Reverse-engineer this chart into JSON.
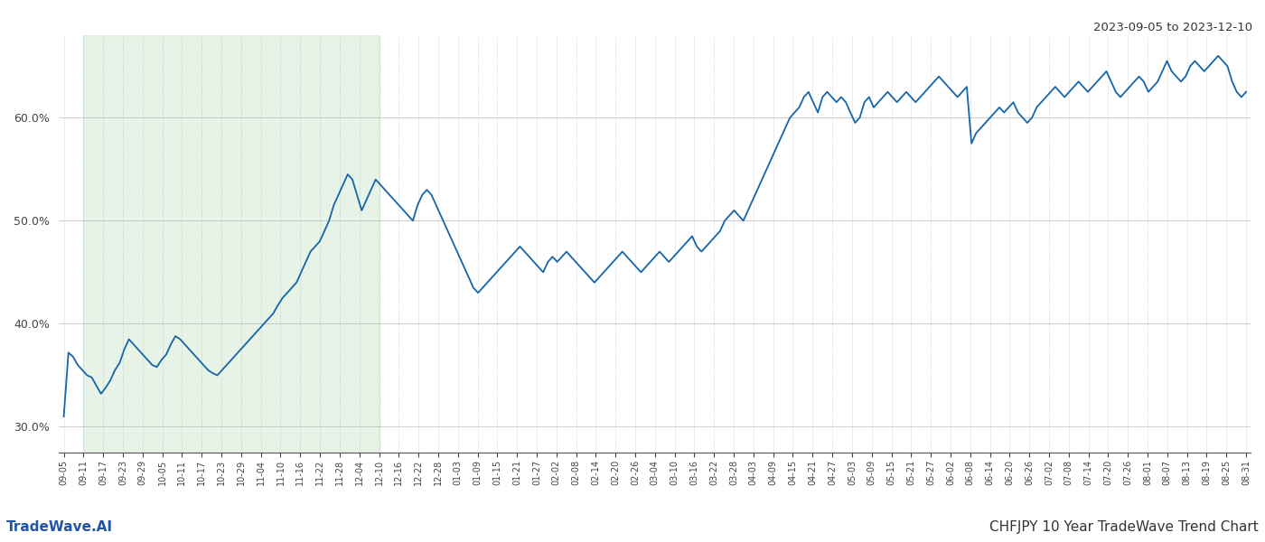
{
  "title_top_right": "2023-09-05 to 2023-12-10",
  "title_bottom_left": "TradeWave.AI",
  "title_bottom_right": "CHFJPY 10 Year TradeWave Trend Chart",
  "line_color": "#1565a8",
  "line_width": 1.3,
  "shade_color": "#c8e6c8",
  "shade_alpha": 0.45,
  "background_color": "#ffffff",
  "grid_color": "#bbbbbb",
  "ylim": [
    27.5,
    68.0
  ],
  "yticks": [
    30.0,
    40.0,
    50.0,
    60.0
  ],
  "x_labels": [
    "09-05",
    "09-11",
    "09-17",
    "09-23",
    "09-29",
    "10-05",
    "10-11",
    "10-17",
    "10-23",
    "10-29",
    "11-04",
    "11-10",
    "11-16",
    "11-22",
    "11-28",
    "12-04",
    "12-10",
    "12-16",
    "12-22",
    "12-28",
    "01-03",
    "01-09",
    "01-15",
    "01-21",
    "01-27",
    "02-02",
    "02-08",
    "02-14",
    "02-20",
    "02-26",
    "03-04",
    "03-10",
    "03-16",
    "03-22",
    "03-28",
    "04-03",
    "04-09",
    "04-15",
    "04-21",
    "04-27",
    "05-03",
    "05-09",
    "05-15",
    "05-21",
    "05-27",
    "06-02",
    "06-08",
    "06-14",
    "06-20",
    "06-26",
    "07-02",
    "07-08",
    "07-14",
    "07-20",
    "07-26",
    "08-01",
    "08-07",
    "08-13",
    "08-19",
    "08-25",
    "08-31"
  ],
  "shade_label_start": "09-11",
  "shade_label_end": "12-10",
  "values": [
    31.0,
    37.2,
    36.8,
    36.0,
    35.5,
    35.0,
    34.8,
    34.0,
    33.2,
    33.8,
    34.5,
    35.5,
    36.2,
    37.5,
    38.5,
    38.0,
    37.5,
    37.0,
    36.5,
    36.0,
    35.8,
    36.5,
    37.0,
    38.0,
    38.8,
    38.5,
    38.0,
    37.5,
    37.0,
    36.5,
    36.0,
    35.5,
    35.2,
    35.0,
    35.5,
    36.0,
    36.5,
    37.0,
    37.5,
    38.0,
    38.5,
    39.0,
    39.5,
    40.0,
    40.5,
    41.0,
    41.8,
    42.5,
    43.0,
    43.5,
    44.0,
    45.0,
    46.0,
    47.0,
    47.5,
    48.0,
    49.0,
    50.0,
    51.5,
    52.5,
    53.5,
    54.5,
    54.0,
    52.5,
    51.0,
    52.0,
    53.0,
    54.0,
    53.5,
    53.0,
    52.5,
    52.0,
    51.5,
    51.0,
    50.5,
    50.0,
    51.5,
    52.5,
    53.0,
    52.5,
    51.5,
    50.5,
    49.5,
    48.5,
    47.5,
    46.5,
    45.5,
    44.5,
    43.5,
    43.0,
    43.5,
    44.0,
    44.5,
    45.0,
    45.5,
    46.0,
    46.5,
    47.0,
    47.5,
    47.0,
    46.5,
    46.0,
    45.5,
    45.0,
    46.0,
    46.5,
    46.0,
    46.5,
    47.0,
    46.5,
    46.0,
    45.5,
    45.0,
    44.5,
    44.0,
    44.5,
    45.0,
    45.5,
    46.0,
    46.5,
    47.0,
    46.5,
    46.0,
    45.5,
    45.0,
    45.5,
    46.0,
    46.5,
    47.0,
    46.5,
    46.0,
    46.5,
    47.0,
    47.5,
    48.0,
    48.5,
    47.5,
    47.0,
    47.5,
    48.0,
    48.5,
    49.0,
    50.0,
    50.5,
    51.0,
    50.5,
    50.0,
    51.0,
    52.0,
    53.0,
    54.0,
    55.0,
    56.0,
    57.0,
    58.0,
    59.0,
    60.0,
    60.5,
    61.0,
    62.0,
    62.5,
    61.5,
    60.5,
    62.0,
    62.5,
    62.0,
    61.5,
    62.0,
    61.5,
    60.5,
    59.5,
    60.0,
    61.5,
    62.0,
    61.0,
    61.5,
    62.0,
    62.5,
    62.0,
    61.5,
    62.0,
    62.5,
    62.0,
    61.5,
    62.0,
    62.5,
    63.0,
    63.5,
    64.0,
    63.5,
    63.0,
    62.5,
    62.0,
    62.5,
    63.0,
    57.5,
    58.5,
    59.0,
    59.5,
    60.0,
    60.5,
    61.0,
    60.5,
    61.0,
    61.5,
    60.5,
    60.0,
    59.5,
    60.0,
    61.0,
    61.5,
    62.0,
    62.5,
    63.0,
    62.5,
    62.0,
    62.5,
    63.0,
    63.5,
    63.0,
    62.5,
    63.0,
    63.5,
    64.0,
    64.5,
    63.5,
    62.5,
    62.0,
    62.5,
    63.0,
    63.5,
    64.0,
    63.5,
    62.5,
    63.0,
    63.5,
    64.5,
    65.5,
    64.5,
    64.0,
    63.5,
    64.0,
    65.0,
    65.5,
    65.0,
    64.5,
    65.0,
    65.5,
    66.0,
    65.5,
    65.0,
    63.5,
    62.5,
    62.0,
    62.5
  ]
}
